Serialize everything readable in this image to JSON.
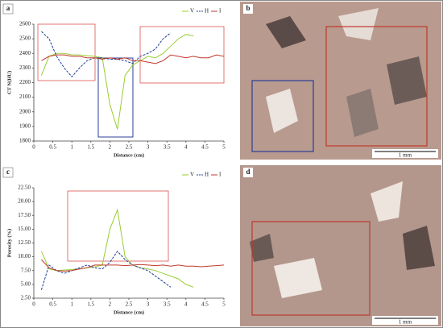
{
  "chart_data": [
    {
      "type": "line",
      "panel": "a",
      "xlabel": "Distance (cm)",
      "ylabel": "CT N(HU)",
      "x": [
        0.2,
        0.4,
        0.6,
        0.8,
        1.0,
        1.2,
        1.4,
        1.6,
        1.8,
        2.0,
        2.2,
        2.4,
        2.6,
        2.8,
        3.0,
        3.2,
        3.4,
        3.6,
        3.8,
        4.0,
        4.2,
        4.4,
        4.6,
        4.8,
        5.0
      ],
      "series": [
        {
          "name": "V",
          "color": "#9acd32",
          "dashed": false,
          "values": [
            2250,
            2380,
            2400,
            2400,
            2390,
            2390,
            2385,
            2380,
            2370,
            2050,
            1880,
            2250,
            2320,
            2350,
            2380,
            2370,
            2400,
            2450,
            2500,
            2530,
            2520,
            null,
            null,
            null,
            null
          ]
        },
        {
          "name": "H",
          "color": "#1f3f9a",
          "dashed": true,
          "values": [
            2550,
            2500,
            2380,
            2300,
            2240,
            2300,
            2350,
            2370,
            2370,
            2360,
            2360,
            2350,
            2330,
            2380,
            2400,
            2430,
            2500,
            2540,
            null,
            null,
            null,
            null,
            null,
            null,
            null
          ]
        },
        {
          "name": "I",
          "color": "#c0392b",
          "dashed": false,
          "values": [
            2350,
            2380,
            2390,
            2390,
            2380,
            2380,
            2370,
            2370,
            2360,
            2370,
            2360,
            2370,
            2350,
            2350,
            2340,
            2330,
            2350,
            2390,
            2380,
            2370,
            2380,
            2370,
            2370,
            2390,
            2380
          ]
        }
      ],
      "xlim": [
        0,
        5
      ],
      "xticks": [
        0,
        0.5,
        1,
        1.5,
        2,
        2.5,
        3,
        3.5,
        4,
        4.5,
        5
      ],
      "ylim": [
        1800,
        2600
      ],
      "yticks": [
        1800,
        1900,
        2000,
        2100,
        2200,
        2300,
        2400,
        2500,
        2600
      ]
    },
    {
      "type": "line",
      "panel": "c",
      "xlabel": "Distance (cm)",
      "ylabel": "Porosity (%)",
      "x": [
        0.2,
        0.4,
        0.6,
        0.8,
        1.0,
        1.2,
        1.4,
        1.6,
        1.8,
        2.0,
        2.2,
        2.4,
        2.6,
        2.8,
        3.0,
        3.2,
        3.4,
        3.6,
        3.8,
        4.0,
        4.2,
        4.4,
        4.6,
        4.8,
        5.0
      ],
      "series": [
        {
          "name": "V",
          "color": "#9acd32",
          "dashed": false,
          "values": [
            11.0,
            7.8,
            7.5,
            7.6,
            7.7,
            7.8,
            8.0,
            8.2,
            8.5,
            15.0,
            18.5,
            10.0,
            8.5,
            8.0,
            7.8,
            7.5,
            7.0,
            6.5,
            6.0,
            5.0,
            4.5,
            null,
            null,
            null,
            null
          ]
        },
        {
          "name": "H",
          "color": "#1f3f9a",
          "dashed": true,
          "values": [
            4.0,
            8.5,
            7.5,
            7.0,
            7.5,
            8.0,
            8.5,
            8.0,
            7.8,
            9.0,
            11.0,
            9.5,
            8.5,
            8.0,
            7.5,
            6.5,
            5.5,
            4.5,
            null,
            null,
            null,
            null,
            null,
            null,
            null
          ]
        },
        {
          "name": "I",
          "color": "#c0392b",
          "dashed": false,
          "values": [
            9.5,
            8.0,
            7.5,
            7.4,
            7.5,
            7.8,
            8.0,
            8.5,
            8.5,
            8.5,
            8.5,
            8.4,
            8.5,
            8.6,
            8.5,
            8.4,
            8.5,
            8.3,
            8.5,
            8.3,
            8.3,
            8.2,
            8.3,
            8.4,
            8.5
          ]
        }
      ],
      "xlim": [
        0,
        5
      ],
      "xticks": [
        0,
        0.5,
        1,
        1.5,
        2,
        2.5,
        3,
        3.5,
        4,
        4.5,
        5
      ],
      "ylim": [
        2.5,
        22.5
      ],
      "yticks": [
        {
          "value": 2.5,
          "label": "2.50"
        },
        {
          "value": 5,
          "label": "5.00"
        },
        {
          "value": 7.5,
          "label": "7.50"
        },
        {
          "value": 10,
          "label": "10.00"
        },
        {
          "value": 12.5,
          "label": "12.50"
        },
        {
          "value": 15,
          "label": "15.00"
        },
        {
          "value": 17.5,
          "label": "17.50"
        },
        {
          "value": 20,
          "label": "20.00"
        },
        {
          "value": 22.5,
          "label": "22.50"
        }
      ]
    }
  ],
  "images": [
    {
      "panel": "b",
      "scale": "1 mm"
    },
    {
      "panel": "d",
      "scale": "1 mm"
    }
  ]
}
